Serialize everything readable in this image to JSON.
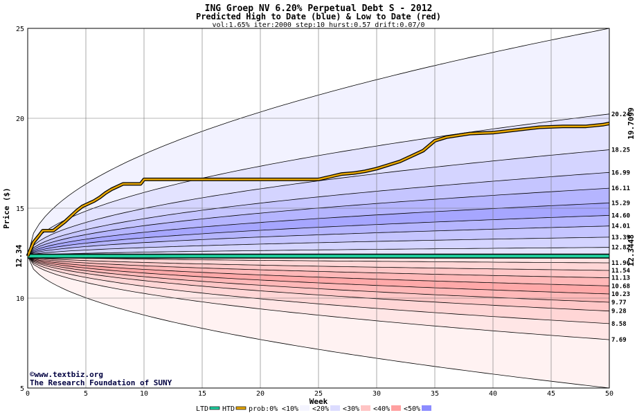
{
  "chart_data": {
    "type": "area",
    "title": "ING Groep NV 6.20% Perpetual Debt S - 2012",
    "subtitle": "Predicted High to Date (blue) &  Low to Date (red)",
    "params": "vol:1.65% iter:2000 step:10 hurst:0.57 drift:0.07/0",
    "xlabel": "Week",
    "ylabel": "Price ($)",
    "xlim": [
      0,
      50
    ],
    "ylim": [
      5,
      25
    ],
    "x_ticks": [
      "0",
      "5",
      "10",
      "15",
      "20",
      "25",
      "30",
      "35",
      "40",
      "45",
      "50"
    ],
    "y_ticks": [
      "5",
      "10",
      "15",
      "20",
      "25"
    ],
    "start_price": 12.34,
    "start_price_label": "12.34",
    "htd_end_label": "19.7099",
    "ltd_end_label": "12.3448",
    "grid": true,
    "colors": {
      "blue_band": "#8080ff",
      "red_band": "#ff8080",
      "htd_line": "#e8a800",
      "ltd_line": "#20d0a0",
      "contour": "#000000",
      "plot_bg": "#ffffff"
    },
    "high_bands_end": [
      25.0,
      20.24,
      18.25,
      16.99,
      16.11,
      15.29,
      14.6,
      14.01,
      13.39,
      12.82
    ],
    "high_band_alpha": [
      0.1,
      0.22,
      0.34,
      0.46,
      0.58,
      0.7,
      0.58,
      0.46,
      0.34,
      0.22
    ],
    "low_bands_end": [
      5.0,
      7.69,
      8.58,
      9.28,
      9.77,
      10.23,
      10.68,
      11.13,
      11.54,
      11.96
    ],
    "low_band_alpha": [
      0.1,
      0.2,
      0.32,
      0.44,
      0.56,
      0.68,
      0.56,
      0.44,
      0.32,
      0.22
    ],
    "right_labels": [
      "20.24",
      "18.25",
      "16.99",
      "16.11",
      "15.29",
      "14.60",
      "14.01",
      "13.39",
      "12.82",
      "11.96",
      "11.54",
      "11.13",
      "10.68",
      "10.23",
      "9.77",
      "9.28",
      "8.58",
      "7.69"
    ],
    "htd_series": {
      "name": "HTD",
      "x": [
        0,
        0.5,
        1,
        1.3,
        2,
        2.2,
        2.7,
        3.2,
        3.7,
        4.2,
        4.7,
        5.2,
        5.7,
        6.2,
        6.7,
        7.2,
        7.7,
        8.2,
        9.7,
        10,
        25,
        26,
        27,
        28,
        29,
        30,
        31,
        32,
        33,
        34,
        35,
        36,
        38,
        40,
        42,
        44,
        46,
        48,
        49.5,
        50
      ],
      "y": [
        12.34,
        13.1,
        13.5,
        13.75,
        13.75,
        13.75,
        14.0,
        14.25,
        14.55,
        14.85,
        15.1,
        15.25,
        15.4,
        15.6,
        15.85,
        16.05,
        16.2,
        16.35,
        16.35,
        16.6,
        16.6,
        16.75,
        16.9,
        16.95,
        17.05,
        17.2,
        17.4,
        17.6,
        17.9,
        18.2,
        18.75,
        18.95,
        19.15,
        19.2,
        19.35,
        19.5,
        19.55,
        19.55,
        19.65,
        19.71
      ]
    },
    "ltd_series": {
      "name": "LTD",
      "x": [
        0,
        50
      ],
      "y": [
        12.34,
        12.34
      ]
    },
    "credit_lines": [
      "©www.textbiz.org",
      "The Research Foundation of SUNY"
    ],
    "legend": [
      {
        "label": "LTD",
        "swatch": "line",
        "color": "#20d0a0"
      },
      {
        "label": "HTD",
        "swatch": "line",
        "color": "#e8a800"
      },
      {
        "label": "prob:0%",
        "swatch": "none",
        "color": ""
      },
      {
        "label": "<10%",
        "swatch": "gradient",
        "color": "#f4f4ff"
      },
      {
        "label": "<20%",
        "swatch": "gradient",
        "color": "#dcdcff"
      },
      {
        "label": "<30%",
        "swatch": "gradient",
        "color": "#ffc4c4"
      },
      {
        "label": "<40%",
        "swatch": "gradient",
        "color": "#ffa0a0"
      },
      {
        "label": "<50%",
        "swatch": "gradient",
        "color": "#8c8cff"
      }
    ]
  }
}
